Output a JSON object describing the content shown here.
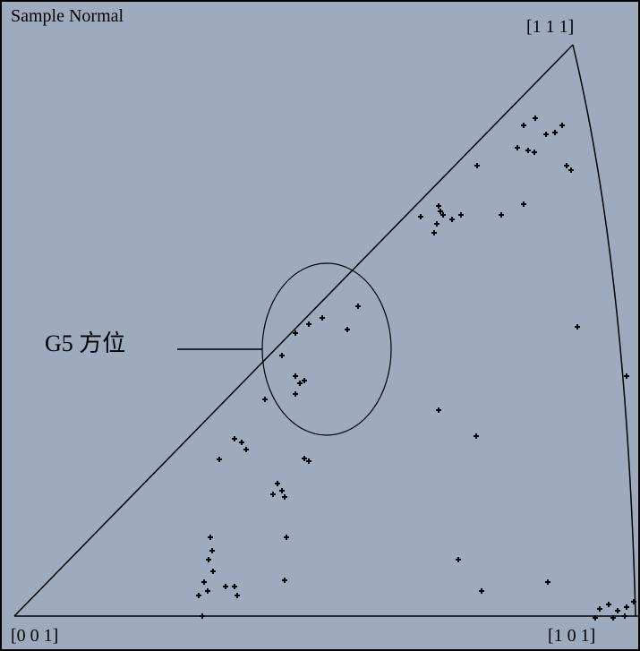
{
  "header": {
    "title": "Sample Normal"
  },
  "poles": {
    "top": "[1 1 1]",
    "bottom_left": "[0 0 1]",
    "bottom_right": "[1 0 1]"
  },
  "annotation": {
    "label": "G5 方位"
  }
}
